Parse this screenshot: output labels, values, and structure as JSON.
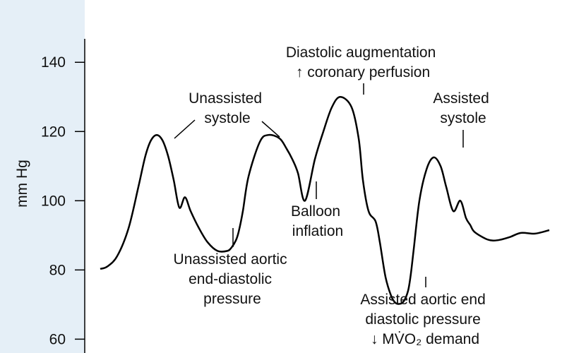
{
  "chart_data": {
    "type": "line",
    "ylabel": "mm Hg",
    "ylim": [
      56,
      158
    ],
    "yticks": [
      60,
      80,
      100,
      120,
      140
    ],
    "grid": false,
    "colors": {
      "background": "#e5eff7",
      "plot": "#ffffff",
      "line": "#000000"
    },
    "series": [
      {
        "x": [
          0,
          10,
          24,
          40,
          54,
          64,
          72,
          80,
          88,
          96,
          104,
          112,
          120,
          128,
          140,
          152,
          166,
          180,
          186,
          192,
          196,
          202,
          210,
          226,
          238,
          254,
          264,
          272,
          280,
          290,
          304,
          316,
          328,
          340,
          356,
          366,
          372,
          380,
          390,
          396,
          404,
          412,
          418,
          424,
          430,
          436,
          440,
          444,
          452,
          462,
          472,
          482,
          490,
          500,
          510,
          518,
          524,
          530,
          546,
          556,
          566,
          580,
          596,
          616,
          636
        ],
        "y": [
          80.3,
          81,
          84,
          92,
          104,
          113,
          117.5,
          119,
          117.5,
          113,
          106,
          98,
          101,
          97,
          92,
          88,
          85.5,
          85.5,
          86.5,
          88.5,
          91,
          97,
          107,
          117,
          119,
          118,
          115,
          112,
          108,
          100,
          112,
          120,
          127,
          130,
          127,
          118,
          106,
          97,
          94,
          88,
          78,
          72.5,
          70.5,
          70.2,
          71,
          74,
          79,
          86,
          100,
          109,
          112.5,
          110,
          104,
          97,
          100,
          95,
          93,
          91,
          89,
          88.5,
          88.7,
          89.5,
          90.7,
          90.5,
          91.5
        ]
      }
    ],
    "annotations": [
      {
        "lines": [
          "Diastolic augmentation",
          "↑ coronary perfusion"
        ]
      },
      {
        "lines": [
          "Unassisted",
          "systole"
        ]
      },
      {
        "lines": [
          "Assisted",
          "systole"
        ]
      },
      {
        "lines": [
          "Balloon",
          "inflation"
        ]
      },
      {
        "lines": [
          "Unassisted aortic",
          "end-diastolic",
          "pressure"
        ]
      },
      {
        "lines": [
          "Assisted aortic end",
          "diastolic pressure",
          "↓ MV̇O₂ demand"
        ]
      }
    ]
  }
}
